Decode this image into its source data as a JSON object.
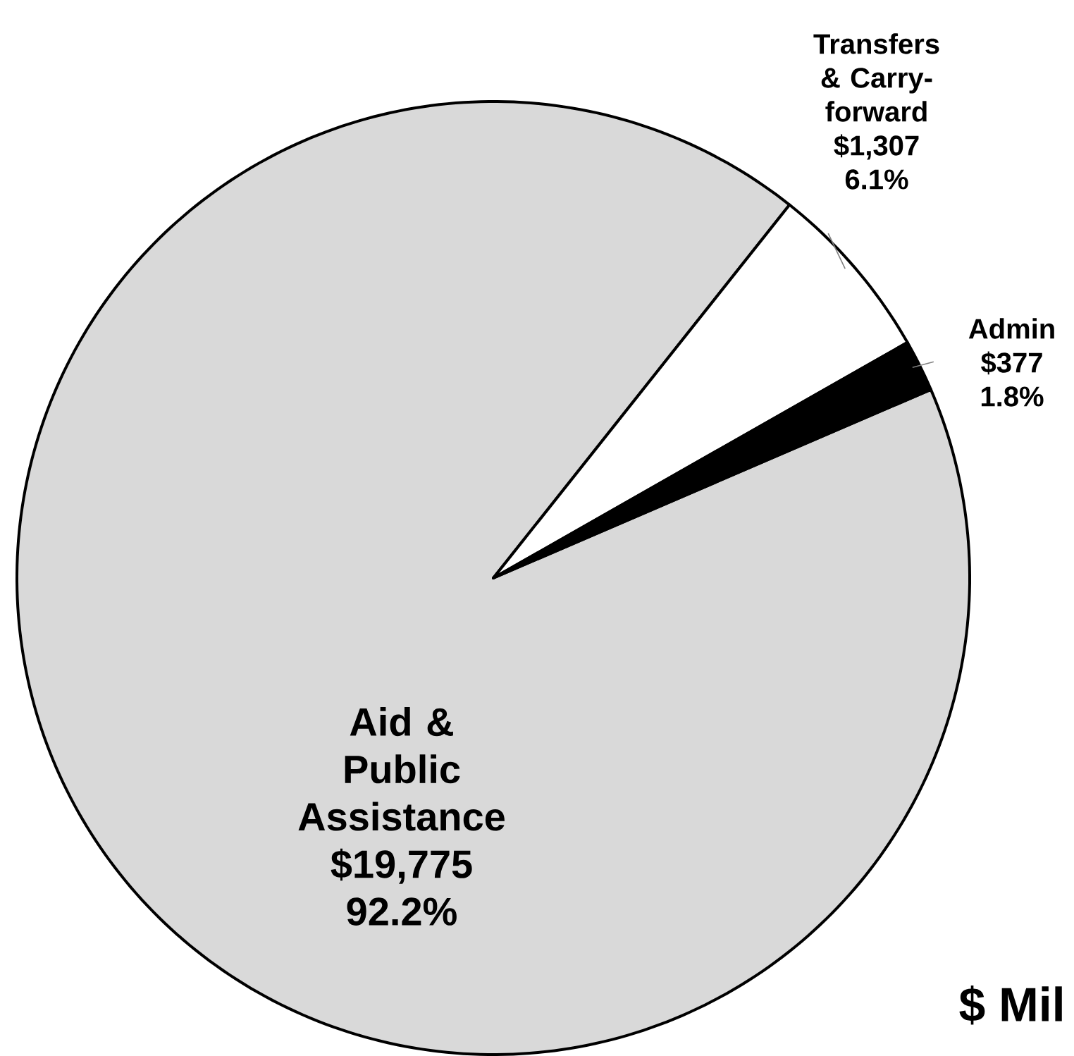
{
  "chart_data": {
    "type": "pie",
    "categories": [
      "Aid & Public Assistance",
      "Transfers & Carry-forward",
      "Admin"
    ],
    "values": [
      19775,
      1307,
      377
    ],
    "value_labels": [
      "$19,775 92.2%",
      "$1,307 6.1%",
      "$377 1.8%"
    ],
    "colors": [
      "#d9d9d9",
      "#ffffff",
      "#000000"
    ],
    "annotations": [
      "$ Mil"
    ]
  }
}
